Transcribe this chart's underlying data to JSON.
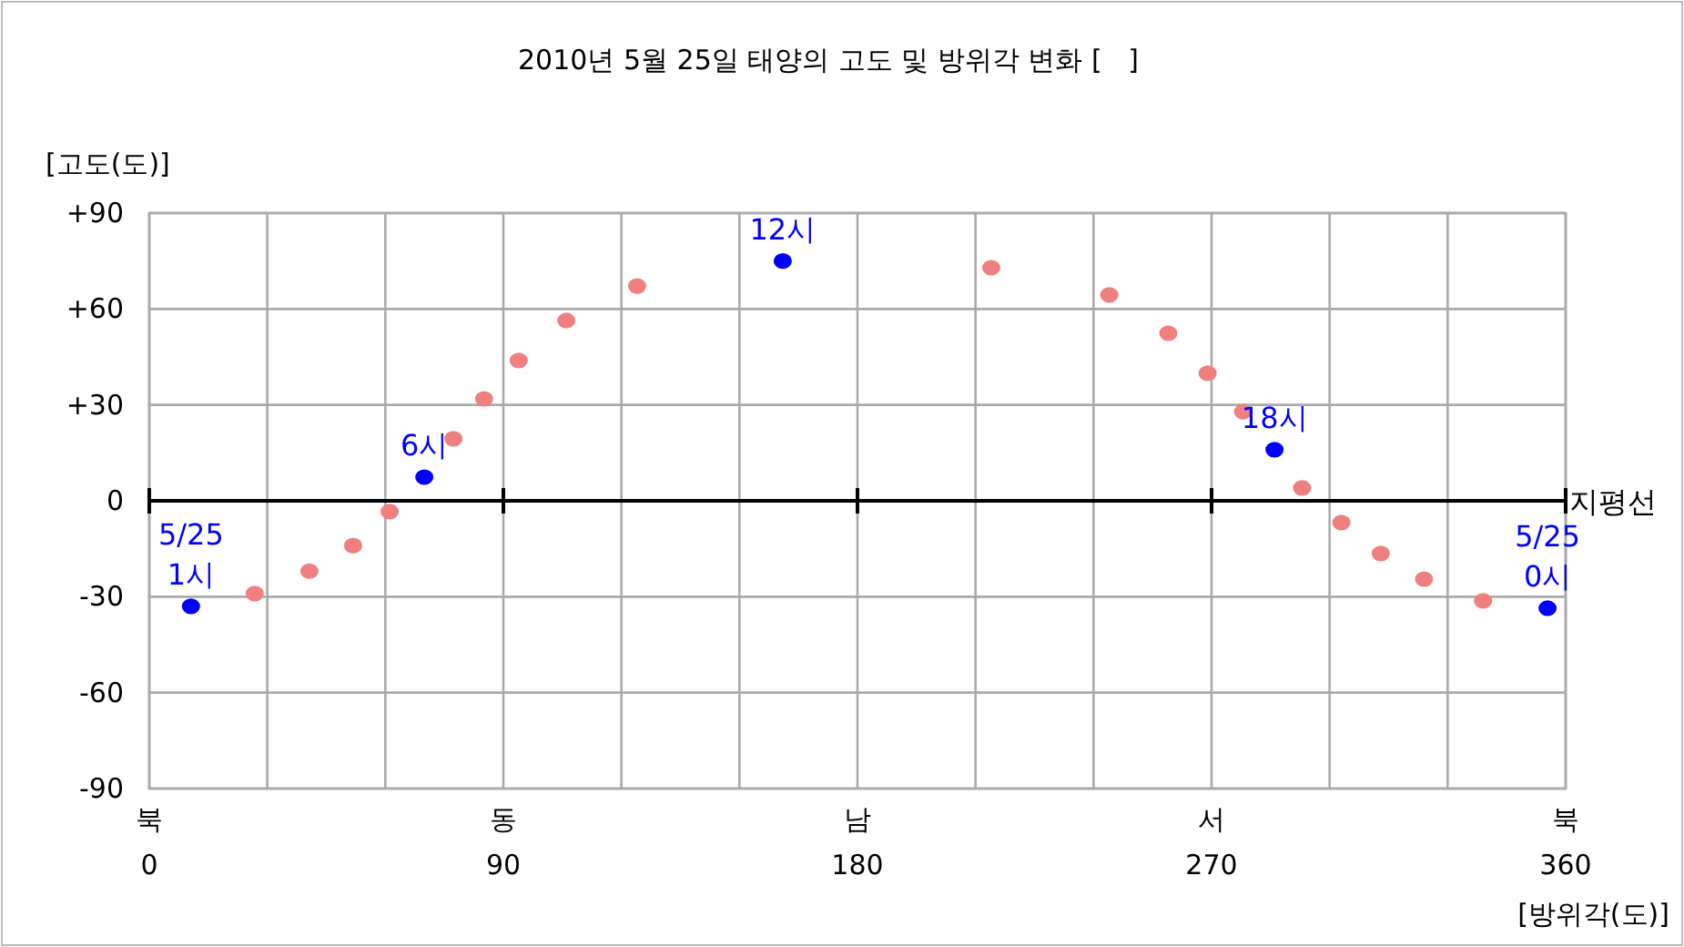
{
  "chart_data": {
    "type": "scatter",
    "title": "2010년 5월 25일 태양의 고도 및 방위각 변화 [   ]",
    "xlabel": "[방위각(도)]",
    "ylabel": "[고도(도)]",
    "xlim": [
      0,
      360
    ],
    "ylim": [
      -90,
      90
    ],
    "xticks": [
      0,
      90,
      180,
      270,
      360
    ],
    "yticks": [
      {
        "value": 90,
        "label": "+90"
      },
      {
        "value": 60,
        "label": "+60"
      },
      {
        "value": 30,
        "label": "+30"
      },
      0,
      -30,
      -60,
      -90
    ],
    "grid": true,
    "marker": "circle",
    "series": [
      {
        "color": "#f08080",
        "x": [
          26.8,
          40.7,
          51.8,
          61.1,
          77.3,
          85.1,
          93.9,
          106,
          124,
          214,
          244,
          259,
          269,
          278,
          293,
          303,
          313,
          324,
          339
        ],
        "values": [
          -29,
          -22,
          -14,
          -3.4,
          19.4,
          31.9,
          43.9,
          56.4,
          67.2,
          72.9,
          64.4,
          52.4,
          39.9,
          27.9,
          4,
          -6.8,
          -16.5,
          -24.5,
          -31.3
        ]
      },
      {
        "color": "#0000ff",
        "x": [
          10.6,
          69.9,
          161,
          286,
          355.4
        ],
        "values": [
          -33,
          7.4,
          75,
          16,
          -33.6
        ]
      }
    ],
    "ref_lines": [
      {
        "axis": "y",
        "value": 0,
        "label": "지평선",
        "color": "#000000"
      }
    ],
    "annotations": [
      {
        "text": "5/25\n1시",
        "x": 10.6,
        "y": -33
      },
      {
        "text": "6시",
        "x": 69.9,
        "y": 7.4
      },
      {
        "text": "12시",
        "x": 161,
        "y": 75
      },
      {
        "text": "18시",
        "x": 286,
        "y": 16
      },
      {
        "text": "5/25\n0시",
        "x": 355.4,
        "y": -33.6
      },
      "북",
      "동",
      "남",
      "서",
      "북"
    ]
  }
}
